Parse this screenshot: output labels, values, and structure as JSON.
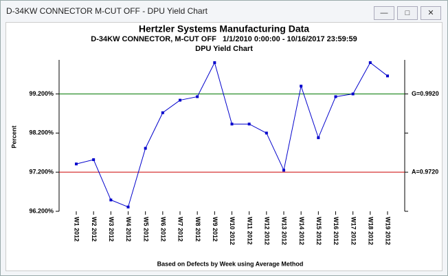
{
  "window_title": "D-34KW CONNECTOR  M-CUT OFF - DPU Yield Chart",
  "chart_data": {
    "type": "line",
    "title": "Hertzler Systems Manufacturing Data",
    "subtitle": "D-34KW CONNECTOR, M-CUT OFF   1/1/2010 0:00:00 - 10/16/2017 23:59:59",
    "chart_name": "DPU Yield Chart",
    "y_label": "Percent",
    "x_note": "Based on Defects by Week using Average Method",
    "categories": [
      "W1 2012",
      "W2 2012",
      "W3 2012",
      "W4 2012",
      "W5 2012",
      "W6 2012",
      "W7 2012",
      "W8 2012",
      "W9 2012",
      "W10 2012",
      "W11 2012",
      "W12 2012",
      "W13 2012",
      "W14 2012",
      "W15 2012",
      "W16 2012",
      "W17 2012",
      "W18 2012",
      "W19 2012"
    ],
    "series": [
      {
        "color": "#0000cc",
        "values": [
          97.41,
          97.52,
          96.49,
          96.31,
          97.81,
          98.72,
          99.04,
          99.13,
          100.0,
          98.43,
          98.43,
          98.2,
          97.25,
          99.4,
          98.08,
          99.13,
          99.2,
          100.0,
          99.66
        ]
      }
    ],
    "ylim": [
      96.2,
      100.0
    ],
    "yticks": [
      {
        "value": 96.2,
        "label": "96.200%"
      },
      {
        "value": 97.2,
        "label": "97.200%"
      },
      {
        "value": 98.2,
        "label": "98.200%"
      },
      {
        "value": 99.2,
        "label": "99.200%"
      }
    ],
    "reference_lines": [
      {
        "value": 99.2,
        "label": "G=0.9920",
        "color": "#007700"
      },
      {
        "value": 97.2,
        "label": "A=0.9720",
        "color": "#cc0000"
      }
    ]
  }
}
